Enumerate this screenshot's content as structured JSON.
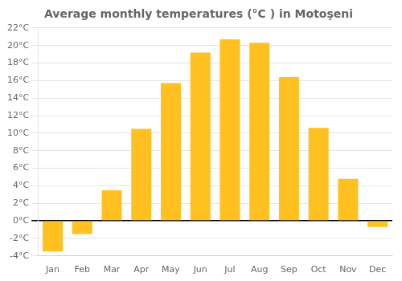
{
  "chart_data": {
    "type": "bar",
    "title": "Average monthly temperatures (°C ) in Motoşeni",
    "categories": [
      "Jan",
      "Feb",
      "Mar",
      "Apr",
      "May",
      "Jun",
      "Jul",
      "Aug",
      "Sep",
      "Oct",
      "Nov",
      "Dec"
    ],
    "values": [
      -3.5,
      -1.5,
      3.5,
      10.5,
      15.7,
      19.2,
      20.7,
      20.3,
      16.4,
      10.6,
      4.8,
      -0.7
    ],
    "color": "#FFC020",
    "ylim": [
      -4,
      22
    ],
    "yticks": [
      {
        "value": -4,
        "label": "-4°C"
      },
      {
        "value": -2,
        "label": "-2°C"
      },
      {
        "value": 0,
        "label": "0°C"
      },
      {
        "value": 2,
        "label": "2°C"
      },
      {
        "value": 4,
        "label": "4°C"
      },
      {
        "value": 6,
        "label": "6°C"
      },
      {
        "value": 8,
        "label": "8°C"
      },
      {
        "value": 10,
        "label": "10°C"
      },
      {
        "value": 12,
        "label": "12°C"
      },
      {
        "value": 14,
        "label": "14°C"
      },
      {
        "value": 16,
        "label": "16°C"
      },
      {
        "value": 18,
        "label": "18°C"
      },
      {
        "value": 20,
        "label": "20°C"
      },
      {
        "value": 22,
        "label": "22°C"
      }
    ],
    "grid": true
  }
}
